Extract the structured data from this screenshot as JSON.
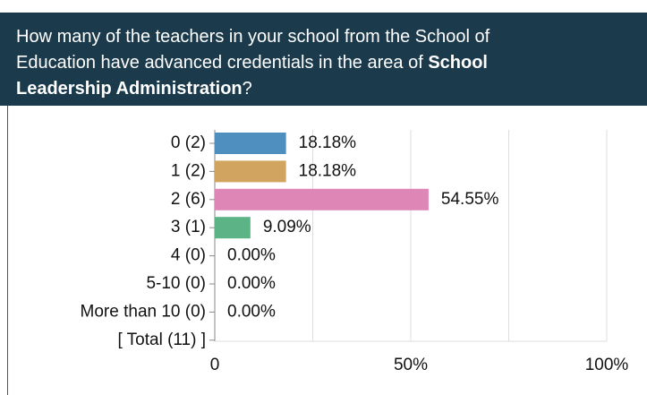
{
  "chart_data": {
    "type": "bar",
    "orientation": "horizontal",
    "title": [
      "How many of the teachers in your school from the School of Education have advanced credentials in the area of ",
      "School Leadership Administration",
      "?"
    ],
    "categories": [
      "0 (2)",
      "1 (2)",
      "2 (6)",
      "3 (1)",
      "4 (0)",
      "5-10 (0)",
      "More than 10 (0)",
      "[ Total (11) ]"
    ],
    "values": [
      18.18,
      18.18,
      54.55,
      9.09,
      0,
      0,
      0,
      null
    ],
    "value_labels": [
      "18.18%",
      "18.18%",
      "54.55%",
      "9.09%",
      "0.00%",
      "0.00%",
      "0.00%",
      null
    ],
    "colors": [
      "#4f8fc0",
      "#d1a55f",
      "#de86b5",
      "#5cb386",
      "#4f8fc0",
      "#4f8fc0",
      "#4f8fc0",
      "#4f8fc0"
    ],
    "xlim": [
      0,
      100
    ],
    "xticks": [
      0,
      {
        "value": 50,
        "label": "50%"
      },
      {
        "value": 100,
        "label": "100%"
      }
    ],
    "xgrid": [
      0,
      25,
      50,
      75,
      100
    ],
    "grid": true
  }
}
